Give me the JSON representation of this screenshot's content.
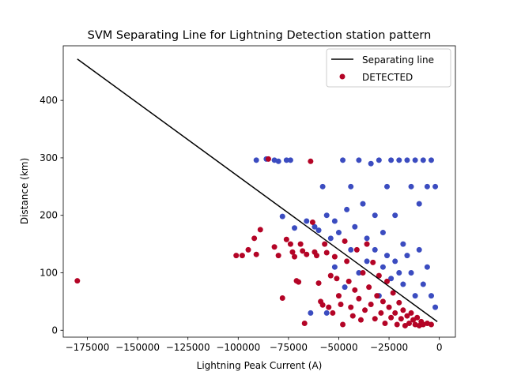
{
  "chart_data": {
    "type": "scatter",
    "title": "SVM Separating Line for Lightning Detection station pattern",
    "xlabel": "Lightning Peak Current (A)",
    "ylabel": "Distance (km)",
    "xlim": [
      -187000,
      8000
    ],
    "ylim": [
      -12,
      495
    ],
    "xticks": [
      -175000,
      -150000,
      -125000,
      -100000,
      -75000,
      -50000,
      -25000,
      0
    ],
    "xtick_labels": [
      "−175000",
      "−150000",
      "−125000",
      "−100000",
      "−75000",
      "−50000",
      "−25000",
      "0"
    ],
    "yticks": [
      0,
      100,
      200,
      300,
      400
    ],
    "ytick_labels": [
      "0",
      "100",
      "200",
      "300",
      "400"
    ],
    "grid": false,
    "legend": {
      "placement": "top-right",
      "entries": [
        "Separating line",
        "DETECTED"
      ]
    },
    "colors": {
      "line": "#000000",
      "detected": "#b40426",
      "not_detected": "#3b4cc0"
    },
    "separating_line": {
      "x": [
        -180000,
        -1000
      ],
      "y": [
        472,
        15
      ]
    },
    "detected_points": [
      [
        -180000,
        86
      ],
      [
        -101000,
        130
      ],
      [
        -98000,
        130
      ],
      [
        -95000,
        140
      ],
      [
        -92000,
        160
      ],
      [
        -89000,
        175
      ],
      [
        -91000,
        132
      ],
      [
        -85000,
        298
      ],
      [
        -82000,
        145
      ],
      [
        -80000,
        130
      ],
      [
        -78000,
        56
      ],
      [
        -76000,
        158
      ],
      [
        -74000,
        150
      ],
      [
        -73000,
        136
      ],
      [
        -72000,
        128
      ],
      [
        -71000,
        86
      ],
      [
        -70000,
        84
      ],
      [
        -69000,
        150
      ],
      [
        -68000,
        138
      ],
      [
        -67000,
        12
      ],
      [
        -66000,
        132
      ],
      [
        -64000,
        294
      ],
      [
        -63000,
        188
      ],
      [
        -62000,
        136
      ],
      [
        -61000,
        130
      ],
      [
        -60000,
        82
      ],
      [
        -59000,
        50
      ],
      [
        -58000,
        44
      ],
      [
        -57000,
        150
      ],
      [
        -56000,
        135
      ],
      [
        -55000,
        40
      ],
      [
        -54000,
        95
      ],
      [
        -53000,
        30
      ],
      [
        -52000,
        128
      ],
      [
        -51000,
        90
      ],
      [
        -50000,
        60
      ],
      [
        -49000,
        45
      ],
      [
        -48000,
        10
      ],
      [
        -47000,
        155
      ],
      [
        -46000,
        120
      ],
      [
        -45000,
        85
      ],
      [
        -44000,
        40
      ],
      [
        -43000,
        25
      ],
      [
        -42000,
        70
      ],
      [
        -41000,
        140
      ],
      [
        -40000,
        55
      ],
      [
        -39000,
        18
      ],
      [
        -38000,
        100
      ],
      [
        -37000,
        35
      ],
      [
        -36000,
        150
      ],
      [
        -35000,
        75
      ],
      [
        -34000,
        45
      ],
      [
        -33000,
        118
      ],
      [
        -32000,
        20
      ],
      [
        -31000,
        60
      ],
      [
        -30000,
        95
      ],
      [
        -29000,
        30
      ],
      [
        -28000,
        50
      ],
      [
        -27000,
        12
      ],
      [
        -26000,
        85
      ],
      [
        -25000,
        40
      ],
      [
        -24000,
        22
      ],
      [
        -23000,
        65
      ],
      [
        -22000,
        30
      ],
      [
        -21000,
        10
      ],
      [
        -20000,
        48
      ],
      [
        -19000,
        20
      ],
      [
        -18000,
        35
      ],
      [
        -17000,
        8
      ],
      [
        -16000,
        25
      ],
      [
        -15000,
        12
      ],
      [
        -14000,
        30
      ],
      [
        -13000,
        18
      ],
      [
        -12000,
        10
      ],
      [
        -11000,
        22
      ],
      [
        -10000,
        8
      ],
      [
        -9000,
        15
      ],
      [
        -8000,
        10
      ],
      [
        -6000,
        12
      ],
      [
        -4000,
        10
      ]
    ],
    "not_detected_points": [
      [
        -91000,
        296
      ],
      [
        -86000,
        298
      ],
      [
        -82000,
        296
      ],
      [
        -80000,
        294
      ],
      [
        -76000,
        296
      ],
      [
        -74000,
        296
      ],
      [
        -78000,
        198
      ],
      [
        -72000,
        178
      ],
      [
        -66000,
        190
      ],
      [
        -62000,
        180
      ],
      [
        -60000,
        174
      ],
      [
        -58000,
        250
      ],
      [
        -56000,
        200
      ],
      [
        -54000,
        160
      ],
      [
        -52000,
        190
      ],
      [
        -50000,
        170
      ],
      [
        -48000,
        296
      ],
      [
        -46000,
        210
      ],
      [
        -44000,
        250
      ],
      [
        -42000,
        180
      ],
      [
        -40000,
        296
      ],
      [
        -38000,
        220
      ],
      [
        -36000,
        160
      ],
      [
        -34000,
        290
      ],
      [
        -32000,
        200
      ],
      [
        -30000,
        296
      ],
      [
        -28000,
        170
      ],
      [
        -26000,
        250
      ],
      [
        -24000,
        296
      ],
      [
        -22000,
        200
      ],
      [
        -20000,
        296
      ],
      [
        -18000,
        150
      ],
      [
        -16000,
        296
      ],
      [
        -14000,
        250
      ],
      [
        -12000,
        296
      ],
      [
        -10000,
        220
      ],
      [
        -8000,
        296
      ],
      [
        -6000,
        250
      ],
      [
        -4000,
        296
      ],
      [
        -2000,
        250
      ],
      [
        -64000,
        30
      ],
      [
        -56000,
        30
      ],
      [
        -52000,
        110
      ],
      [
        -47000,
        75
      ],
      [
        -44000,
        140
      ],
      [
        -40000,
        100
      ],
      [
        -36000,
        120
      ],
      [
        -32000,
        140
      ],
      [
        -30000,
        60
      ],
      [
        -28000,
        110
      ],
      [
        -26000,
        130
      ],
      [
        -24000,
        90
      ],
      [
        -22000,
        120
      ],
      [
        -20000,
        100
      ],
      [
        -18000,
        80
      ],
      [
        -16000,
        130
      ],
      [
        -14000,
        100
      ],
      [
        -12000,
        60
      ],
      [
        -10000,
        140
      ],
      [
        -8000,
        80
      ],
      [
        -6000,
        110
      ],
      [
        -4000,
        60
      ],
      [
        -2000,
        40
      ]
    ]
  }
}
